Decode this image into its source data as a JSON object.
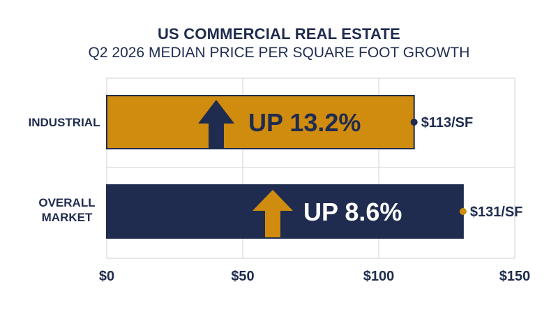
{
  "chart_data": {
    "type": "bar",
    "orientation": "horizontal",
    "title": "US COMMERCIAL REAL ESTATE",
    "subtitle": "Q2 2026 MEDIAN PRICE PER SQUARE FOOT GROWTH",
    "categories": [
      "INDUSTRIAL",
      "OVERALL MARKET"
    ],
    "values": [
      113,
      131
    ],
    "value_labels": [
      "$113/SF",
      "$131/SF"
    ],
    "growth_labels": [
      "UP 13.2%",
      "UP 8.6%"
    ],
    "growth_direction": [
      "up",
      "up"
    ],
    "xlim": [
      0,
      150
    ],
    "x_ticks": [
      0,
      50,
      100,
      150
    ],
    "x_tick_labels": [
      "$0",
      "$50",
      "$100",
      "$150"
    ],
    "xlabel": "",
    "ylabel": "",
    "grid": true,
    "legend": "none",
    "colors": {
      "industrial_bar": "#d08c0f",
      "overall_bar": "#1f2c4f",
      "industrial_arrow": "#1f2c4f",
      "overall_arrow": "#d08c0f",
      "industrial_text": "#1f2c4f",
      "overall_text": "#ffffff",
      "marker_industrial": "#1f2c4f",
      "marker_overall": "#d08c0f",
      "grid": "#d9d9d9",
      "text": "#1f2c4f"
    }
  }
}
